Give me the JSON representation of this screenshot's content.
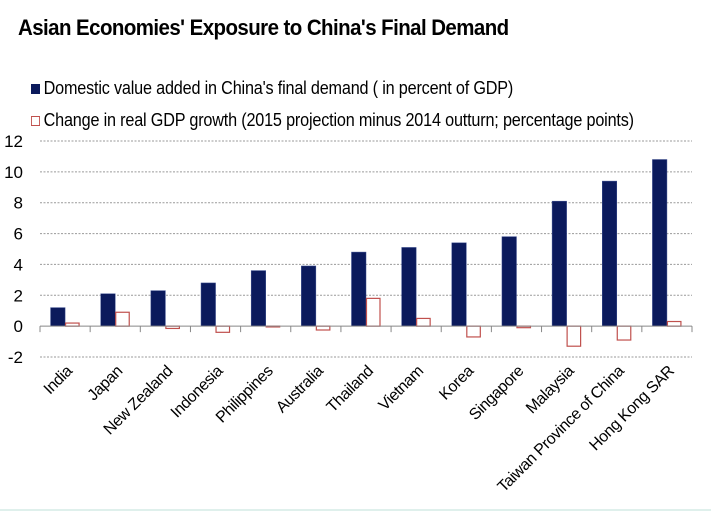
{
  "chart_data": {
    "type": "bar",
    "title": "Asian Economies' Exposure to China's Final Demand",
    "xlabel": "",
    "ylabel": "",
    "ylim": [
      -2,
      12
    ],
    "yticks": [
      -2,
      0,
      2,
      4,
      6,
      8,
      10,
      12
    ],
    "grid": true,
    "legend_position": "top-left",
    "categories": [
      "India",
      "Japan",
      "New Zealand",
      "Indonesia",
      "Philippines",
      "Australia",
      "Thailand",
      "Vietnam",
      "Korea",
      "Singapore",
      "Malaysia",
      "Taiwan Province of China",
      "Hong Kong SAR"
    ],
    "series": [
      {
        "name": "Domestic value added in China's final demand ( in percent of GDP)",
        "style": "filled",
        "color": "#0b1a5c",
        "values": [
          1.2,
          2.1,
          2.3,
          2.8,
          3.6,
          3.9,
          4.8,
          5.1,
          5.4,
          5.8,
          8.1,
          9.4,
          10.8
        ]
      },
      {
        "name": "Change in real GDP growth (2015 projection minus 2014 outturn; percentage points)",
        "style": "outline",
        "color": "#c0504d",
        "values": [
          0.2,
          0.9,
          -0.15,
          -0.4,
          -0.05,
          -0.25,
          1.8,
          0.5,
          -0.7,
          -0.1,
          -1.3,
          -0.9,
          0.3
        ]
      }
    ]
  }
}
